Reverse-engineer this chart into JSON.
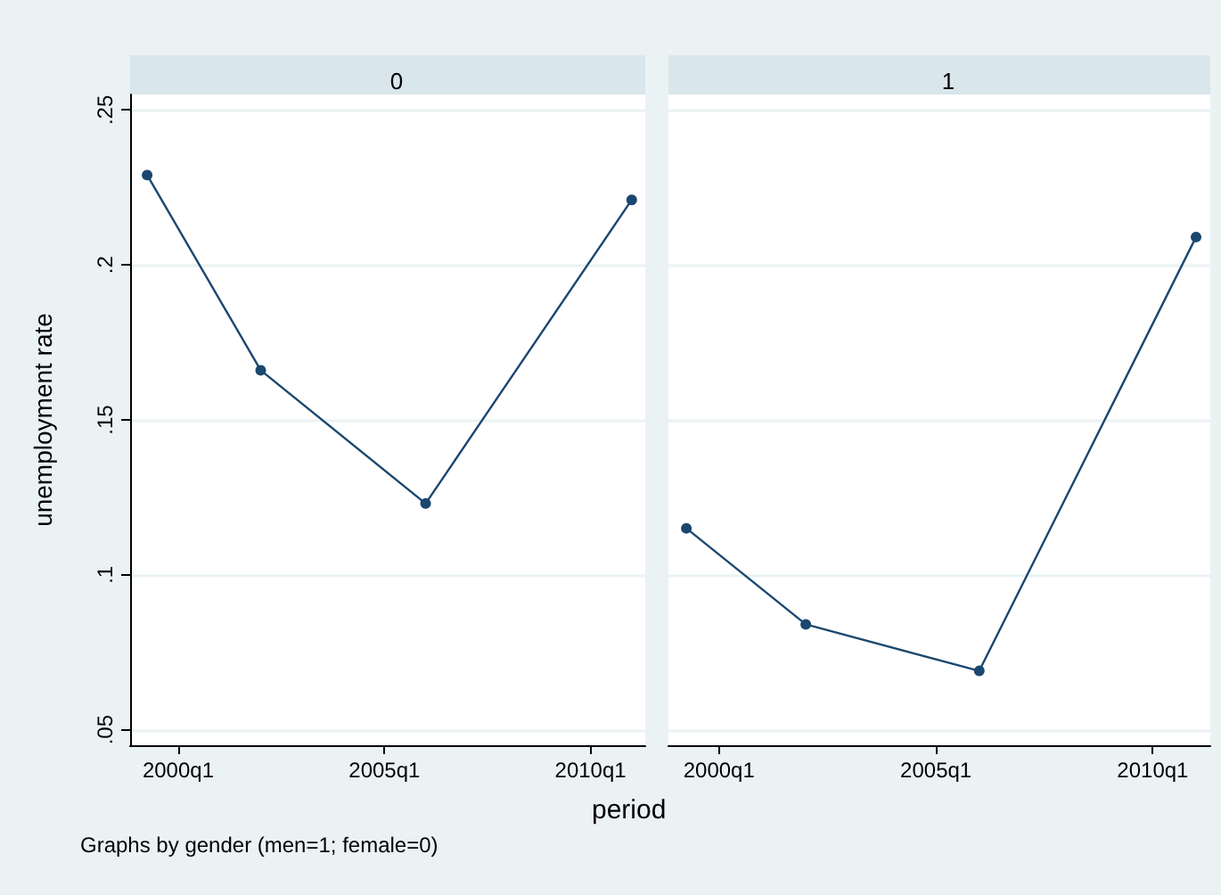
{
  "chart_data": [
    {
      "type": "line",
      "title": "0",
      "ylabel": "unemployment rate",
      "annotations": [
        "Graphs by gender (men=1; female=0)"
      ],
      "x": [
        "1999-04",
        "2002-01",
        "2006-01",
        "2011-01"
      ],
      "series": [
        {
          "color": "#1a476f",
          "values": [
            0.229,
            0.166,
            0.123,
            0.221
          ]
        }
      ],
      "xlim": [
        "1998-11",
        "2011-05"
      ],
      "xticks": [
        {
          "value": "2000-01",
          "label": "2000q1"
        },
        {
          "value": "2005-01",
          "label": "2005q1"
        },
        {
          "value": "2010-01",
          "label": "2010q1"
        }
      ],
      "ylim": [
        0.045,
        0.255
      ],
      "yticks": [
        {
          "value": 0.05,
          "label": ".05"
        },
        {
          "value": 0.1,
          "label": ".1"
        },
        {
          "value": 0.15,
          "label": ".15"
        },
        {
          "value": 0.2,
          "label": ".2"
        },
        {
          "value": 0.25,
          "label": ".25"
        }
      ],
      "grid": "y",
      "marker": "circle",
      "line_style": "solid"
    },
    {
      "type": "line",
      "title": "1",
      "xlabel": "period",
      "x": [
        "1999-04",
        "2002-01",
        "2006-01",
        "2011-01"
      ],
      "series": [
        {
          "color": "#1a476f",
          "values": [
            0.115,
            0.084,
            0.069,
            0.209
          ]
        }
      ],
      "xlim": [
        "1998-11",
        "2011-05"
      ],
      "xticks": [
        {
          "value": "2000-01",
          "label": "2000q1"
        },
        {
          "value": "2005-01",
          "label": "2005q1"
        },
        {
          "value": "2010-01",
          "label": "2010q1"
        }
      ],
      "ylim": [
        0.045,
        0.255
      ],
      "yticks": [
        0.05,
        0.1,
        0.15,
        0.2,
        0.25
      ],
      "grid": "y",
      "marker": "circle",
      "line_style": "solid",
      "tick_labels": "x"
    }
  ]
}
